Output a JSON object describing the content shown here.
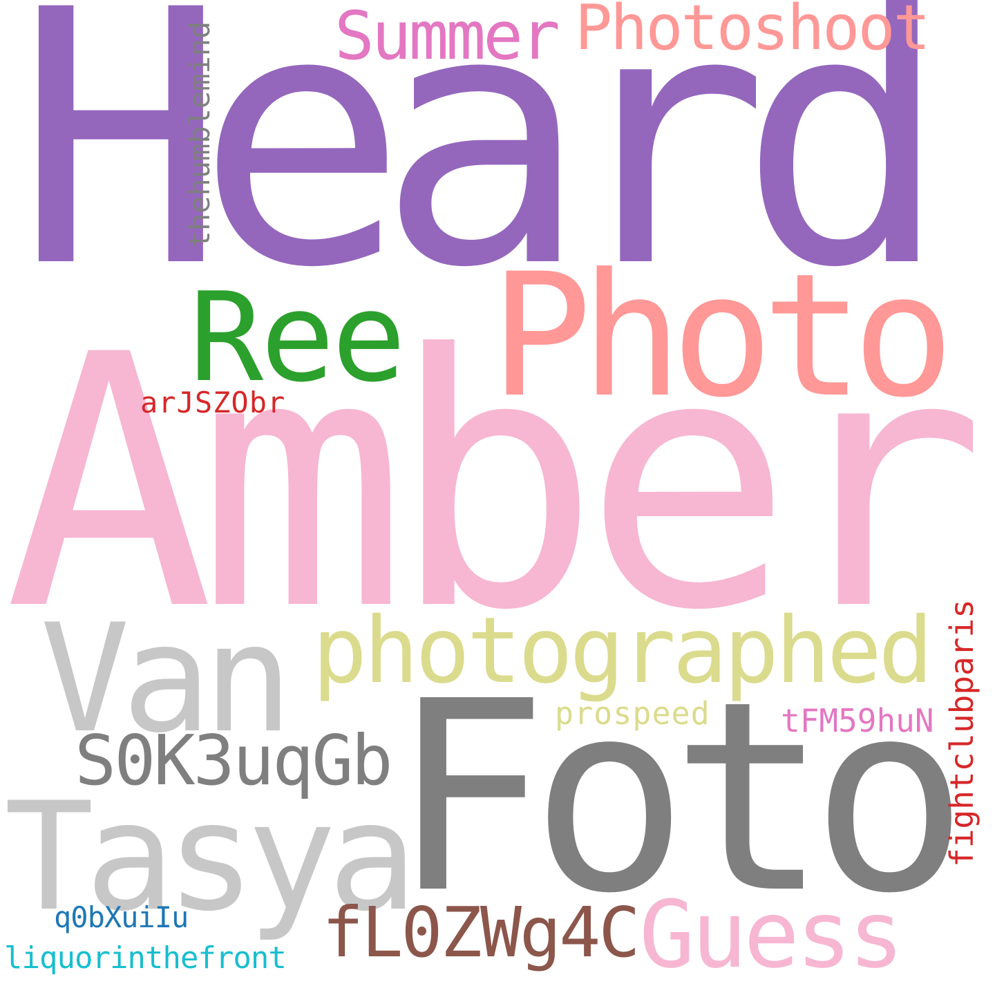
{
  "words": [
    {
      "text": "Heard",
      "color": "#9467bd"
    },
    {
      "text": "Amber",
      "color": "#f7b6d2"
    },
    {
      "text": "Foto",
      "color": "#7f7f7f"
    },
    {
      "text": "Photo",
      "color": "#ff9896"
    },
    {
      "text": "photographed",
      "color": "#dbdb8d"
    },
    {
      "text": "Van",
      "color": "#c7c7c7"
    },
    {
      "text": "Tasya",
      "color": "#c7c7c7"
    },
    {
      "text": "Ree",
      "color": "#2ca02c"
    },
    {
      "text": "Summer",
      "color": "#e377c2"
    },
    {
      "text": "Photoshoot",
      "color": "#ff9896"
    },
    {
      "text": "Guess",
      "color": "#f7b6d2"
    },
    {
      "text": "S0K3uqGb",
      "color": "#7f7f7f"
    },
    {
      "text": "fL0ZWg4C",
      "color": "#8c564b"
    },
    {
      "text": "thehumblemind",
      "color": "#7f7f7f"
    },
    {
      "text": "fightclubparis",
      "color": "#d62728"
    },
    {
      "text": "arJSZObr",
      "color": "#d62728"
    },
    {
      "text": "prospeed",
      "color": "#dbdb8d"
    },
    {
      "text": "tFM59huN",
      "color": "#e377c2"
    },
    {
      "text": "q0bXuiIu",
      "color": "#1f77b4"
    },
    {
      "text": "liquorinthefront",
      "color": "#17becf"
    }
  ]
}
